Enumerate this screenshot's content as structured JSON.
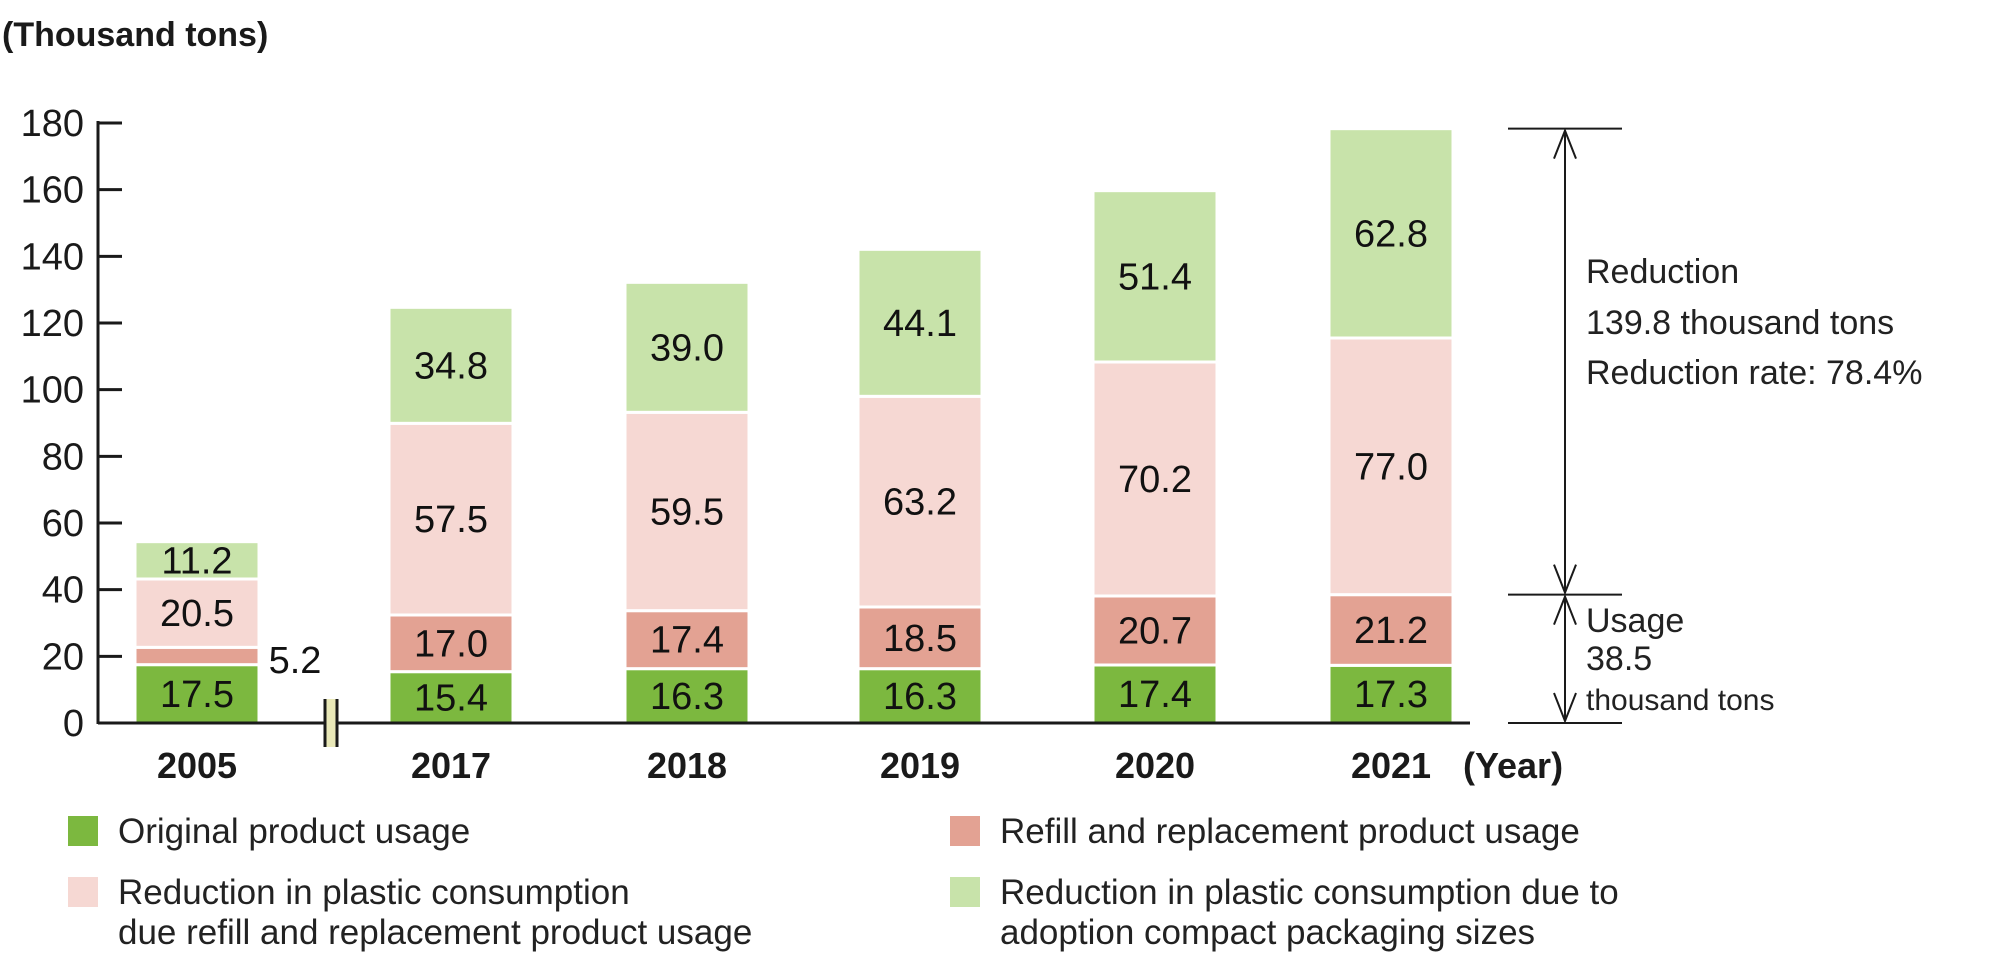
{
  "chart_data": {
    "type": "bar",
    "stacked": true,
    "unit_label": "(Thousand tons)",
    "x_unit_label": "(Year)",
    "categories": [
      "2005",
      "2017",
      "2018",
      "2019",
      "2020",
      "2021"
    ],
    "ylim": [
      0,
      180
    ],
    "yticks": [
      "0",
      "20",
      "40",
      "60",
      "80",
      "100",
      "120",
      "140",
      "160",
      "180"
    ],
    "axis_break_after_category": "2005",
    "series": [
      {
        "name": "Original product usage",
        "color": "#7cb83f",
        "values": [
          17.5,
          15.4,
          16.3,
          16.3,
          17.4,
          17.3
        ],
        "labels": [
          "17.5",
          "15.4",
          "16.3",
          "16.3",
          "17.4",
          "17.3"
        ]
      },
      {
        "name": "Refill and replacement product usage",
        "color": "#e3a293",
        "values": [
          5.2,
          17.0,
          17.4,
          18.5,
          20.7,
          21.2
        ],
        "labels": [
          "5.2",
          "17.0",
          "17.4",
          "18.5",
          "20.7",
          "21.2"
        ]
      },
      {
        "name": "Reduction in plastic consumption\n due refill and replacement product usage",
        "color": "#f6d8d3",
        "values": [
          20.5,
          57.5,
          59.5,
          63.2,
          70.2,
          77.0
        ],
        "labels": [
          "20.5",
          "57.5",
          "59.5",
          "63.2",
          "70.2",
          "77.0"
        ]
      },
      {
        "name": "Reduction in plastic consumption due to\nadoption compact packaging sizes",
        "color": "#c8e3aa",
        "values": [
          11.2,
          34.8,
          39.0,
          44.1,
          51.4,
          62.8
        ],
        "labels": [
          "11.2",
          "34.8",
          "39.0",
          "44.1",
          "51.4",
          "62.8"
        ]
      }
    ],
    "annotations": {
      "reduction": [
        "Reduction",
        "139.8 thousand tons",
        "Reduction rate: 78.4%"
      ],
      "usage": [
        "Usage",
        "38.5",
        "thousand tons"
      ]
    },
    "legend_position": "bottom"
  },
  "colors": {
    "axis": "#1a1a1a",
    "bar_separator": "#ffffff",
    "axis_break": "#e9e8b8"
  }
}
